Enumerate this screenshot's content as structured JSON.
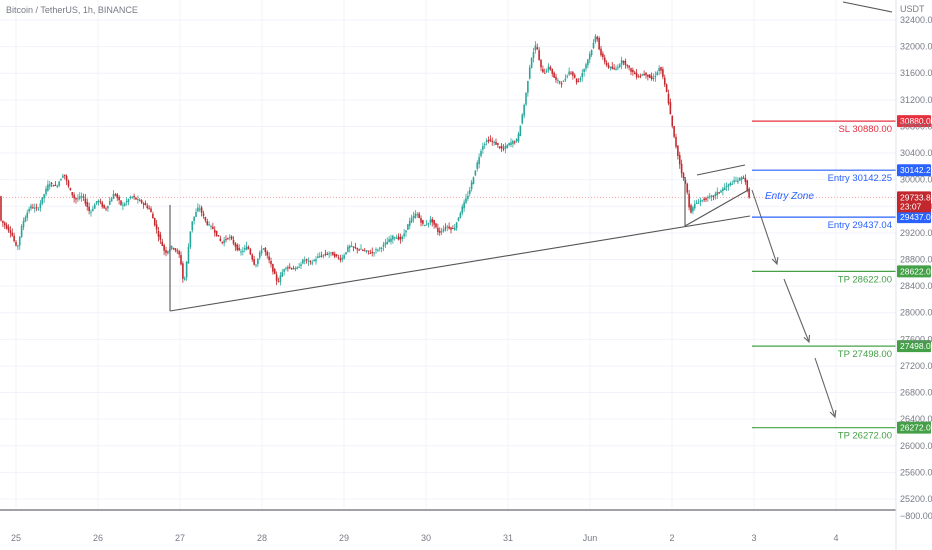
{
  "header": {
    "title": "Bitcoin / TetherUS, 1h, BINANCE"
  },
  "chart_data": {
    "type": "candlestick",
    "symbol": "Bitcoin / TetherUS",
    "interval": "1h",
    "exchange": "BINANCE",
    "currency_label": "USDT",
    "y_ticks": [
      32400,
      32000,
      31600,
      31200,
      30800,
      30400,
      30000,
      29600,
      29200,
      28800,
      28400,
      28000,
      27600,
      27200,
      26800,
      26400,
      26000,
      25600,
      25200
    ],
    "y_tick_labels": [
      "32400.00",
      "32000.00",
      "31600.00",
      "31200.00",
      "30800.00",
      "30400.00",
      "30000.00",
      "29600.00",
      "29200.00",
      "28800.00",
      "28400.00",
      "28000.00",
      "27600.00",
      "27200.00",
      "26800.00",
      "26400.00",
      "26000.00",
      "25600.00",
      "25200.00"
    ],
    "ylim": [
      24940,
      32660
    ],
    "x_ticks": [
      "25",
      "26",
      "27",
      "28",
      "29",
      "30",
      "31",
      "Jun",
      "2",
      "3",
      "4"
    ],
    "current_price": {
      "value": 29733.81,
      "label": "29733.81",
      "countdown": "23:07",
      "color": "#c2272d"
    },
    "levels": [
      {
        "name": "SL",
        "value": 30880.0,
        "label": "SL  30880.00",
        "tag": "30880.00",
        "color": "#e5303e"
      },
      {
        "name": "Entry",
        "value": 30142.25,
        "label": "Entry  30142.25",
        "tag": "30142.25",
        "color": "#2962ff"
      },
      {
        "name": "Entry",
        "value": 29437.04,
        "label": "Entry  29437.04",
        "tag": "29437.04",
        "color": "#2962ff"
      },
      {
        "name": "TP",
        "value": 28622.0,
        "label": "TP  28622.00",
        "tag": "28622.00",
        "color": "#43a047"
      },
      {
        "name": "TP",
        "value": 27498.0,
        "label": "TP  27498.00",
        "tag": "27498.00",
        "color": "#43a047"
      },
      {
        "name": "TP",
        "value": 26272.0,
        "label": "TP  26272.00",
        "tag": "26272.00",
        "color": "#43a047"
      }
    ],
    "annotations": [
      {
        "text": "Entry Zone",
        "color": "#2962ff"
      }
    ],
    "volume_axis_label": "−800.00",
    "colors": {
      "up": "#26a69a",
      "down": "#c2272d",
      "up_wick": "#26a69a",
      "trendline": "#555555",
      "grid": "#f0f3fa"
    },
    "trendlines": [
      {
        "from": [
          "May 26 20:00",
          28020
        ],
        "to": [
          "Jun 2 21:00",
          29440
        ]
      },
      {
        "from": [
          "May 26 20:00",
          28020
        ],
        "to": [
          "May 26 20:00",
          29450
        ]
      },
      {
        "from": [
          "Jun 2 11:00",
          29330
        ],
        "to": [
          "Jun 2 21:00",
          29870
        ]
      },
      {
        "from": [
          "Jun 2 11:00",
          29330
        ],
        "to": [
          "Jun 2 11:00",
          29980
        ]
      },
      {
        "from": [
          "Jun 2 14:00",
          29980
        ],
        "to": [
          "Jun 2 21:00",
          30150
        ]
      }
    ],
    "price_path": [
      [
        0,
        29400
      ],
      [
        6,
        29200
      ],
      [
        9,
        28950
      ],
      [
        12,
        29350
      ],
      [
        16,
        29600
      ],
      [
        20,
        29550
      ],
      [
        26,
        29950
      ],
      [
        30,
        29900
      ],
      [
        34,
        30100
      ],
      [
        37,
        29850
      ],
      [
        40,
        29700
      ],
      [
        44,
        29750
      ],
      [
        48,
        29500
      ],
      [
        52,
        29700
      ],
      [
        56,
        29550
      ],
      [
        61,
        29800
      ],
      [
        65,
        29600
      ],
      [
        70,
        29750
      ],
      [
        76,
        29650
      ],
      [
        80,
        29550
      ],
      [
        84,
        29200
      ],
      [
        88,
        28900
      ],
      [
        92,
        29000
      ],
      [
        96,
        28850
      ],
      [
        98,
        28400
      ],
      [
        102,
        29350
      ],
      [
        106,
        29600
      ],
      [
        110,
        29350
      ],
      [
        114,
        29250
      ],
      [
        118,
        29050
      ],
      [
        122,
        29150
      ],
      [
        128,
        28900
      ],
      [
        132,
        29000
      ],
      [
        136,
        28700
      ],
      [
        140,
        29000
      ],
      [
        144,
        28750
      ],
      [
        148,
        28450
      ],
      [
        152,
        28700
      ],
      [
        158,
        28650
      ],
      [
        162,
        28800
      ],
      [
        166,
        28750
      ],
      [
        170,
        28850
      ],
      [
        176,
        28900
      ],
      [
        182,
        28800
      ],
      [
        186,
        29000
      ],
      [
        192,
        28950
      ],
      [
        198,
        28900
      ],
      [
        204,
        29000
      ],
      [
        210,
        29150
      ],
      [
        214,
        29100
      ],
      [
        218,
        29350
      ],
      [
        222,
        29500
      ],
      [
        226,
        29300
      ],
      [
        230,
        29400
      ],
      [
        234,
        29200
      ],
      [
        238,
        29300
      ],
      [
        242,
        29250
      ],
      [
        246,
        29550
      ],
      [
        250,
        29800
      ],
      [
        254,
        30200
      ],
      [
        257,
        30500
      ],
      [
        260,
        30600
      ],
      [
        264,
        30550
      ],
      [
        268,
        30450
      ],
      [
        272,
        30550
      ],
      [
        276,
        30600
      ],
      [
        280,
        31200
      ],
      [
        283,
        31800
      ],
      [
        286,
        32050
      ],
      [
        288,
        31700
      ],
      [
        290,
        31600
      ],
      [
        293,
        31700
      ],
      [
        296,
        31500
      ],
      [
        300,
        31450
      ],
      [
        304,
        31650
      ],
      [
        308,
        31450
      ],
      [
        312,
        31700
      ],
      [
        316,
        32000
      ],
      [
        318,
        32200
      ],
      [
        320,
        31900
      ],
      [
        324,
        31700
      ],
      [
        328,
        31650
      ],
      [
        332,
        31800
      ],
      [
        336,
        31650
      ],
      [
        340,
        31550
      ],
      [
        344,
        31600
      ],
      [
        348,
        31500
      ],
      [
        352,
        31700
      ],
      [
        356,
        31250
      ],
      [
        359,
        30700
      ],
      [
        362,
        30300
      ],
      [
        364,
        30050
      ],
      [
        366,
        29900
      ],
      [
        368,
        29500
      ],
      [
        371,
        29650
      ],
      [
        375,
        29700
      ],
      [
        380,
        29750
      ],
      [
        385,
        29850
      ],
      [
        390,
        29950
      ],
      [
        394,
        30000
      ],
      [
        397,
        30050
      ],
      [
        399,
        29750
      ]
    ]
  }
}
